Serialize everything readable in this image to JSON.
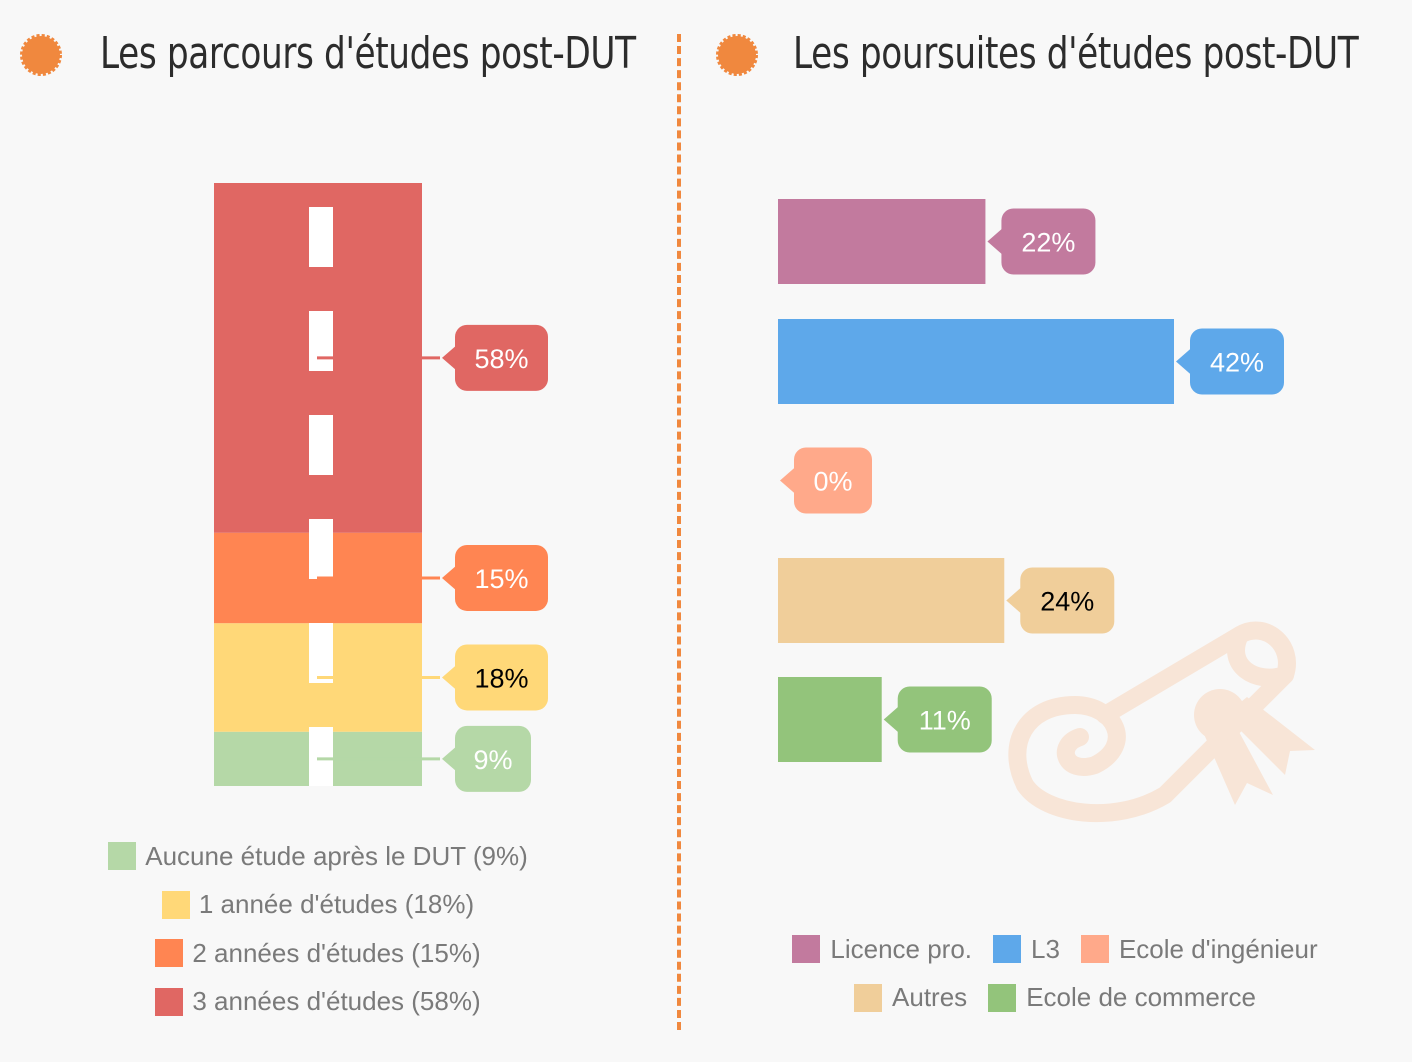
{
  "colors": {
    "bullet": "#f0883e",
    "divider": "#f0883e",
    "road_dash": "#ffffff",
    "diploma": "#f8e5d7"
  },
  "icons": {
    "left_bullet": "orange-dot-icon",
    "right_bullet": "orange-dot-icon",
    "watermark": "diploma-scroll-icon"
  },
  "left_title": "Les parcours d'études post-DUT",
  "right_title": "Les poursuites d'études post-DUT",
  "chart_data": [
    {
      "type": "bar",
      "orientation": "vertical-stacked",
      "title": "Les parcours d'études post-DUT",
      "unit": "%",
      "series": [
        {
          "name": "Aucune étude après le DUT",
          "value": 9,
          "label": "9%",
          "legend": "Aucune étude après le DUT (9%)",
          "color": "#b5d8a7",
          "label_text_color": "#ffffff"
        },
        {
          "name": "1 année d'études",
          "value": 18,
          "label": "18%",
          "legend": "1 année d'études (18%)",
          "color": "#ffd878",
          "label_text_color": "#000000"
        },
        {
          "name": "2 années d'études",
          "value": 15,
          "label": "15%",
          "legend": "2 années d'études (15%)",
          "color": "#ff8552",
          "label_text_color": "#ffffff"
        },
        {
          "name": "3 années d'études",
          "value": 58,
          "label": "58%",
          "legend": "3 années d'études (58%)",
          "color": "#e06763",
          "label_text_color": "#ffffff"
        }
      ],
      "legend_position": "bottom"
    },
    {
      "type": "bar",
      "orientation": "horizontal",
      "title": "Les poursuites d'études post-DUT",
      "unit": "%",
      "xlim": [
        0,
        42
      ],
      "categories": [
        "Licence pro.",
        "L3",
        "Ecole d'ingénieur",
        "Autres",
        "Ecole de commerce"
      ],
      "values": [
        22,
        42,
        0,
        24,
        11
      ],
      "labels": [
        "22%",
        "42%",
        "0%",
        "24%",
        "11%"
      ],
      "colors": [
        "#c27a9e",
        "#5ea8ea",
        "#ffa98a",
        "#f0ce9a",
        "#93c47b"
      ],
      "label_text_colors": [
        "#ffffff",
        "#ffffff",
        "#ffffff",
        "#000000",
        "#ffffff"
      ],
      "legend_position": "bottom",
      "legend_rows": [
        [
          "Licence pro.",
          "L3",
          "Ecole d'ingénieur"
        ],
        [
          "Autres",
          "Ecole de commerce"
        ]
      ]
    }
  ]
}
